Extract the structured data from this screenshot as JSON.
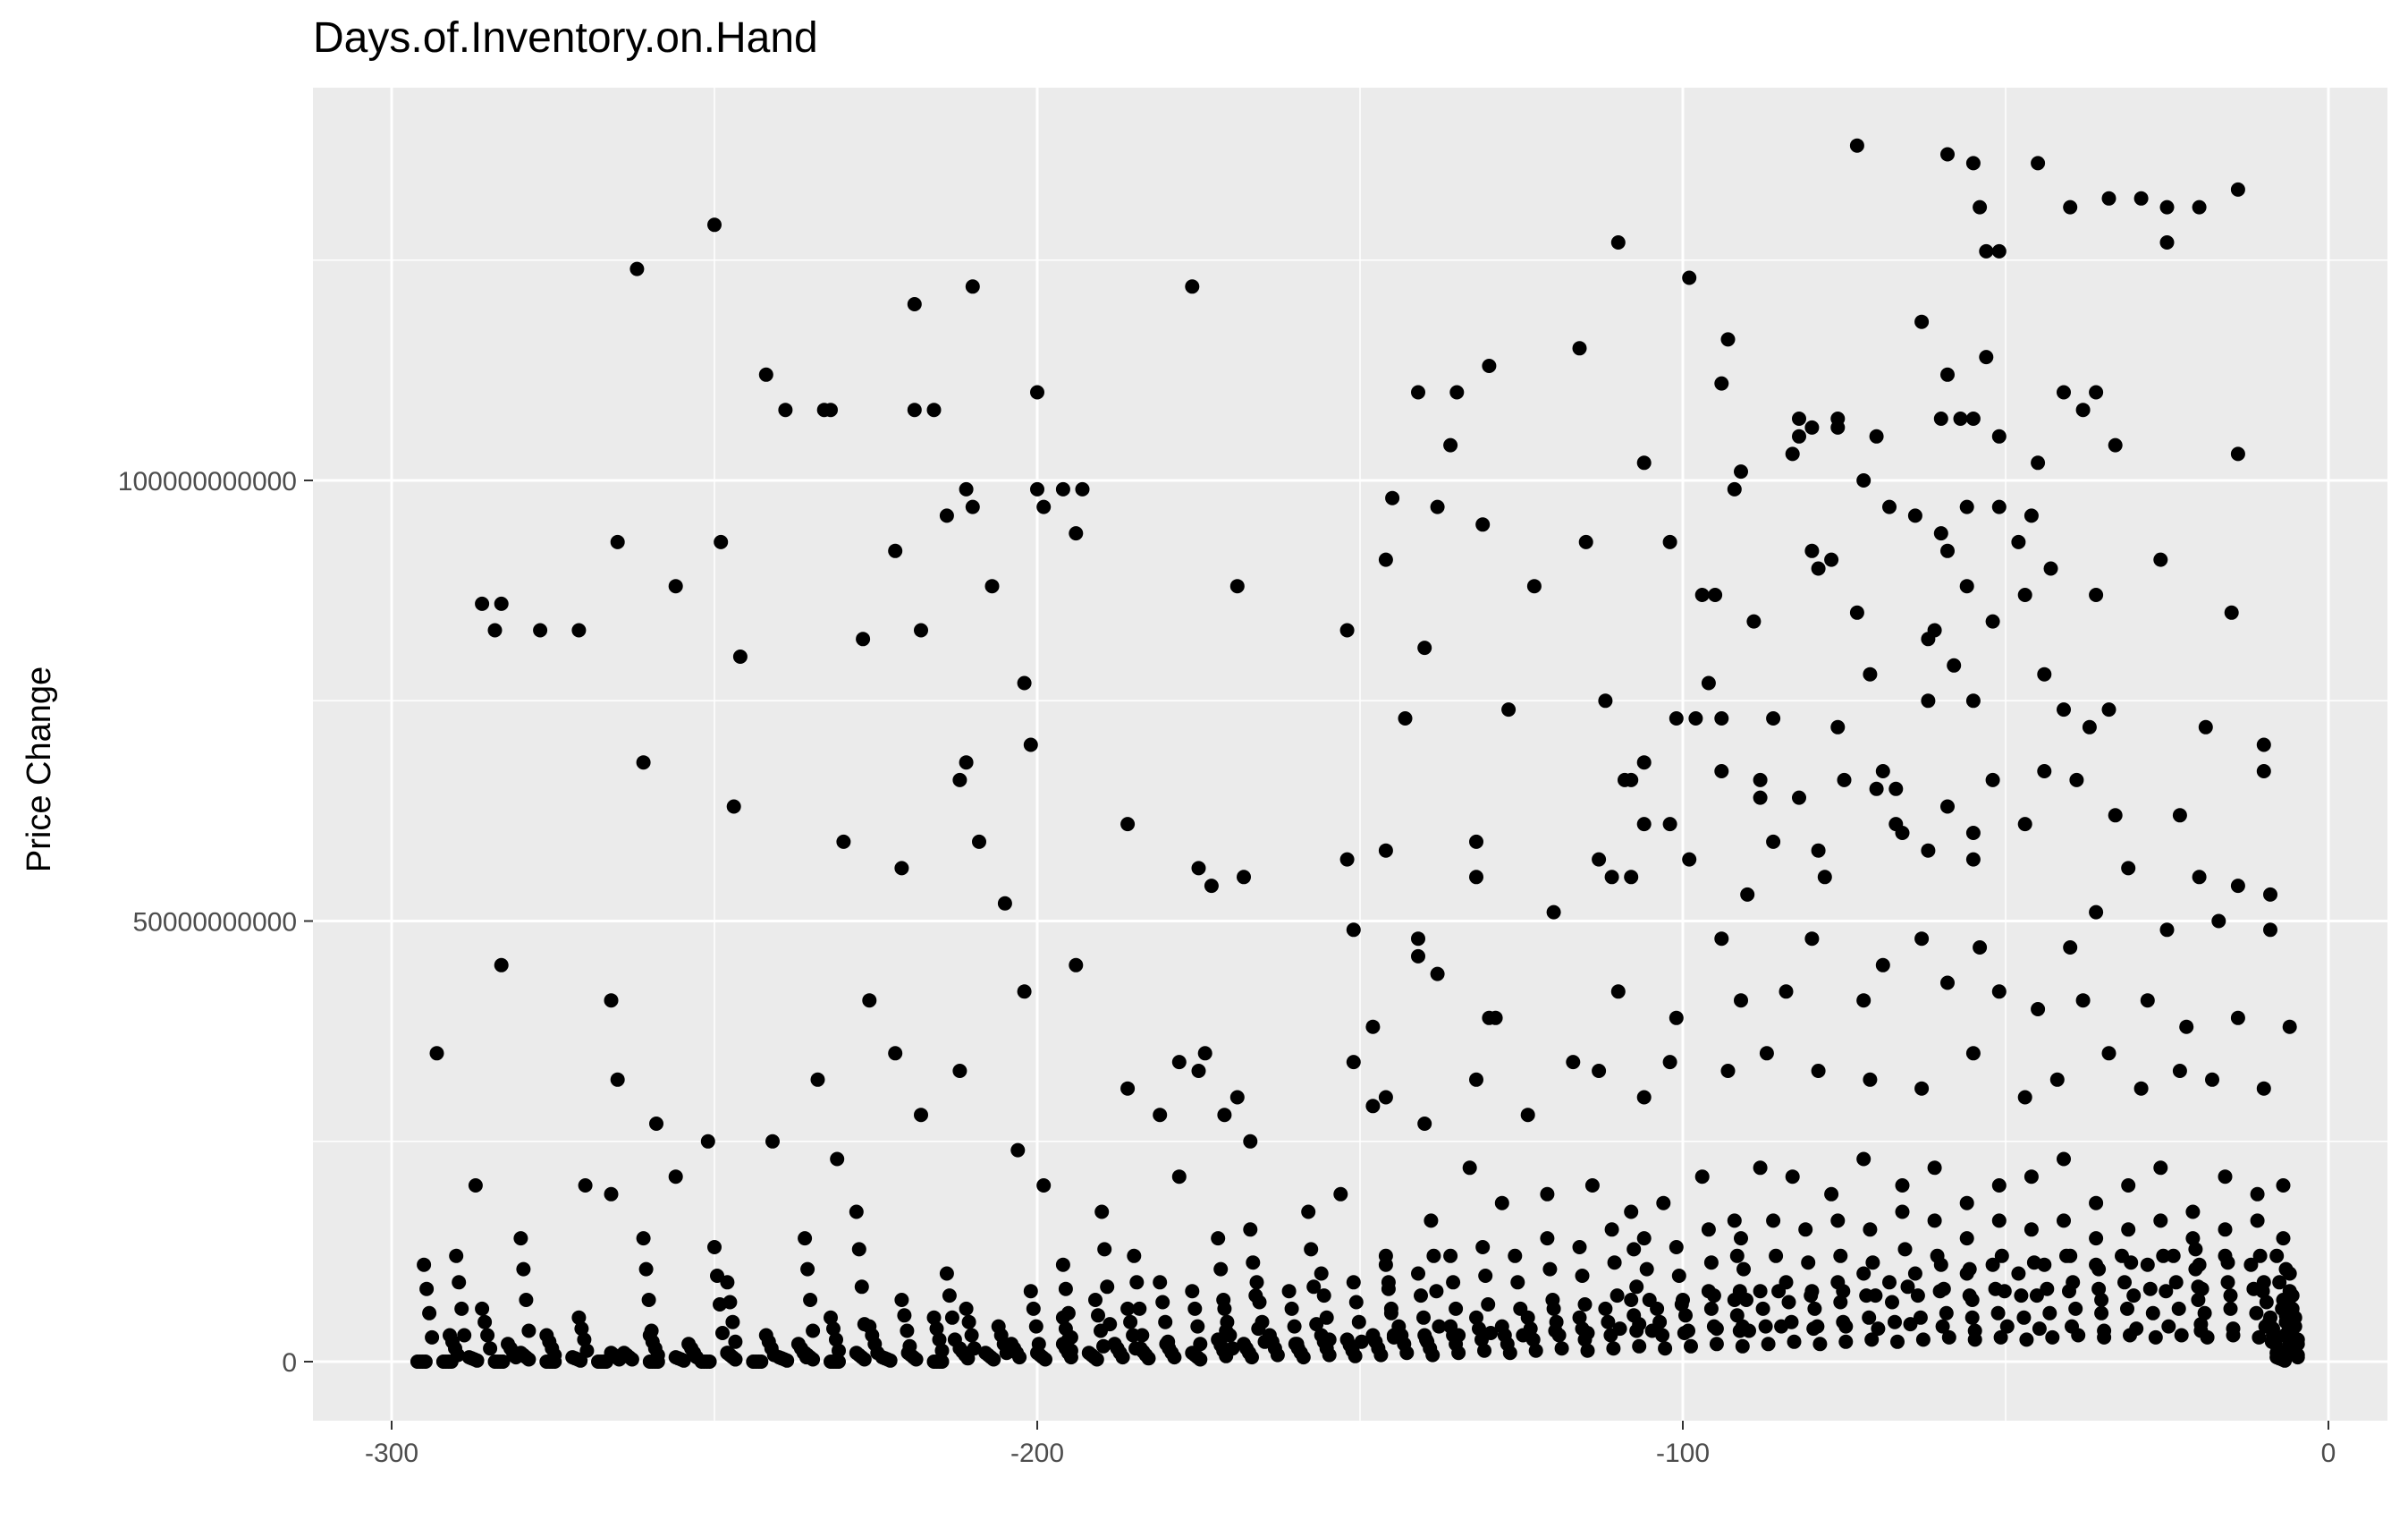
{
  "chart_data": {
    "type": "scatter",
    "title": "Days.of.Inventory.on.Hand",
    "xlabel": "",
    "ylabel": "Price Change",
    "xlim": [
      -300,
      0
    ],
    "ylim": [
      -7000000000,
      145000000000
    ],
    "xticks": [
      -300,
      -200,
      -100,
      0
    ],
    "xtick_labels": [
      "-300",
      "-200",
      "-100",
      "0"
    ],
    "yticks": [
      0,
      50000000000,
      100000000000
    ],
    "ytick_labels": [
      "0",
      "50000000000",
      "100000000000"
    ],
    "grid": true,
    "legend": "none",
    "point_color": "#000000",
    "panel_color": "#ebebeb",
    "grid_color": "#ffffff",
    "points": [
      [
        -73,
        138
      ],
      [
        -59,
        137
      ],
      [
        -55,
        136
      ],
      [
        -45,
        136
      ],
      [
        -14,
        133
      ],
      [
        -34,
        132
      ],
      [
        -29,
        132
      ],
      [
        -25,
        131
      ],
      [
        -20,
        131
      ],
      [
        -40,
        131
      ],
      [
        -54,
        131
      ],
      [
        -25,
        127
      ],
      [
        -51,
        126
      ],
      [
        -53,
        126
      ],
      [
        -250,
        129
      ],
      [
        -262,
        124
      ],
      [
        -110,
        127
      ],
      [
        -99,
        123
      ],
      [
        -176,
        122
      ],
      [
        -210,
        122
      ],
      [
        -219,
        120
      ],
      [
        -63,
        118
      ],
      [
        -93,
        116
      ],
      [
        -116,
        115
      ],
      [
        -53,
        114
      ],
      [
        -130,
        113
      ],
      [
        -242,
        112
      ],
      [
        -239,
        108
      ],
      [
        -233,
        108
      ],
      [
        -232,
        108
      ],
      [
        -216,
        108
      ],
      [
        -219,
        108
      ],
      [
        -200,
        110
      ],
      [
        -141,
        110
      ],
      [
        -135,
        110
      ],
      [
        -94,
        111
      ],
      [
        -59,
        112
      ],
      [
        -36,
        110
      ],
      [
        -41,
        110
      ],
      [
        -38,
        108
      ],
      [
        -57,
        107
      ],
      [
        -60,
        107
      ],
      [
        -55,
        107
      ],
      [
        -70,
        105
      ],
      [
        -80,
        106
      ],
      [
        -76,
        106
      ],
      [
        -82,
        107
      ],
      [
        -76,
        107
      ],
      [
        -82,
        105
      ],
      [
        -51,
        105
      ],
      [
        -33,
        104
      ],
      [
        -14,
        103
      ],
      [
        -83,
        103
      ],
      [
        -91,
        101
      ],
      [
        -106,
        102
      ],
      [
        -45,
        102
      ],
      [
        -92,
        99
      ],
      [
        -200,
        99
      ],
      [
        -196,
        99
      ],
      [
        -193,
        99
      ],
      [
        -211,
        99
      ],
      [
        -72,
        100
      ],
      [
        -136,
        104
      ],
      [
        -210,
        97
      ],
      [
        -214,
        96
      ],
      [
        -199,
        97
      ],
      [
        -138,
        97
      ],
      [
        -145,
        98
      ],
      [
        -68,
        97
      ],
      [
        -51,
        97
      ],
      [
        -56,
        97
      ],
      [
        -46,
        96
      ],
      [
        -64,
        96
      ],
      [
        -131,
        95
      ],
      [
        -60,
        94
      ],
      [
        -48,
        93
      ],
      [
        -80,
        92
      ],
      [
        -102,
        93
      ],
      [
        -115,
        93
      ],
      [
        -194,
        94
      ],
      [
        -222,
        92
      ],
      [
        -265,
        93
      ],
      [
        -249,
        93
      ],
      [
        -77,
        91
      ],
      [
        -59,
        92
      ],
      [
        -79,
        90
      ],
      [
        -26,
        91
      ],
      [
        -146,
        91
      ],
      [
        -43,
        90
      ],
      [
        -47,
        87
      ],
      [
        -56,
        88
      ],
      [
        -95,
        87
      ],
      [
        -97,
        87
      ],
      [
        -207,
        88
      ],
      [
        -169,
        88
      ],
      [
        -123,
        88
      ],
      [
        -256,
        88
      ],
      [
        -246,
        80
      ],
      [
        -286,
        86
      ],
      [
        -283,
        86
      ],
      [
        -284,
        83
      ],
      [
        -277,
        83
      ],
      [
        -271,
        83
      ],
      [
        -218,
        83
      ],
      [
        -227,
        82
      ],
      [
        -152,
        83
      ],
      [
        -140,
        81
      ],
      [
        -89,
        84
      ],
      [
        -15,
        85
      ],
      [
        -61,
        83
      ],
      [
        -73,
        85
      ],
      [
        -58,
        79
      ],
      [
        -52,
        84
      ],
      [
        -36,
        87
      ],
      [
        -62,
        82
      ],
      [
        -202,
        77
      ],
      [
        -96,
        77
      ],
      [
        -71,
        78
      ],
      [
        -44,
        78
      ],
      [
        -143,
        73
      ],
      [
        -127,
        74
      ],
      [
        -112,
        75
      ],
      [
        -98,
        73
      ],
      [
        -94,
        73
      ],
      [
        -101,
        73
      ],
      [
        -86,
        73
      ],
      [
        -76,
        72
      ],
      [
        -62,
        75
      ],
      [
        -55,
        75
      ],
      [
        -37,
        72
      ],
      [
        -34,
        74
      ],
      [
        -41,
        74
      ],
      [
        -19,
        72
      ],
      [
        -10,
        70
      ],
      [
        -201,
        70
      ],
      [
        -211,
        68
      ],
      [
        -261,
        68
      ],
      [
        -94,
        67
      ],
      [
        -108,
        66
      ],
      [
        -109,
        66
      ],
      [
        -106,
        68
      ],
      [
        -88,
        66
      ],
      [
        -75,
        66
      ],
      [
        -70,
        65
      ],
      [
        -67,
        65
      ],
      [
        -69,
        67
      ],
      [
        -52,
        66
      ],
      [
        -44,
        67
      ],
      [
        -39,
        66
      ],
      [
        -33,
        62
      ],
      [
        -23,
        62
      ],
      [
        -10,
        67
      ],
      [
        -59,
        63
      ],
      [
        -55,
        60
      ],
      [
        -67,
        61
      ],
      [
        -106,
        61
      ],
      [
        -102,
        61
      ],
      [
        -82,
        64
      ],
      [
        -88,
        64
      ],
      [
        -212,
        66
      ],
      [
        -247,
        63
      ],
      [
        -205,
        52
      ],
      [
        -209,
        59
      ],
      [
        -230,
        59
      ],
      [
        -221,
        56
      ],
      [
        -186,
        61
      ],
      [
        -146,
        58
      ],
      [
        -132,
        59
      ],
      [
        -132,
        55
      ],
      [
        -168,
        55
      ],
      [
        -175,
        56
      ],
      [
        -173,
        54
      ],
      [
        -152,
        57
      ],
      [
        -113,
        57
      ],
      [
        -108,
        55
      ],
      [
        -111,
        55
      ],
      [
        -99,
        57
      ],
      [
        -86,
        59
      ],
      [
        -79,
        58
      ],
      [
        -78,
        55
      ],
      [
        -66,
        60
      ],
      [
        -55,
        57
      ],
      [
        -47,
        61
      ],
      [
        -31,
        56
      ],
      [
        -14,
        54
      ],
      [
        -20,
        55
      ],
      [
        -9,
        53
      ],
      [
        -36,
        51
      ],
      [
        -62,
        58
      ],
      [
        -90,
        53
      ],
      [
        -151,
        49
      ],
      [
        -94,
        48
      ],
      [
        -141,
        46
      ],
      [
        -138,
        44
      ],
      [
        -141,
        48
      ],
      [
        -120,
        51
      ],
      [
        -80,
        48
      ],
      [
        -69,
        45
      ],
      [
        -63,
        48
      ],
      [
        -54,
        47
      ],
      [
        -40,
        47
      ],
      [
        -25,
        49
      ],
      [
        -17,
        50
      ],
      [
        -9,
        49
      ],
      [
        -283,
        45
      ],
      [
        -194,
        45
      ],
      [
        -202,
        42
      ],
      [
        -226,
        41
      ],
      [
        -266,
        41
      ],
      [
        -110,
        42
      ],
      [
        -130,
        39
      ],
      [
        -129,
        39
      ],
      [
        -148,
        38
      ],
      [
        -101,
        39
      ],
      [
        -91,
        41
      ],
      [
        -84,
        42
      ],
      [
        -72,
        41
      ],
      [
        -59,
        43
      ],
      [
        -51,
        42
      ],
      [
        -45,
        40
      ],
      [
        -38,
        41
      ],
      [
        -28,
        41
      ],
      [
        -22,
        38
      ],
      [
        -14,
        39
      ],
      [
        -6,
        38
      ],
      [
        -293,
        35
      ],
      [
        -265,
        32
      ],
      [
        -222,
        35
      ],
      [
        -212,
        33
      ],
      [
        -234,
        32
      ],
      [
        -241,
        25
      ],
      [
        -251,
        25
      ],
      [
        -259,
        27
      ],
      [
        -175,
        33
      ],
      [
        -178,
        34
      ],
      [
        -174,
        35
      ],
      [
        -169,
        30
      ],
      [
        -186,
        31
      ],
      [
        -181,
        28
      ],
      [
        -171,
        28
      ],
      [
        -167,
        25
      ],
      [
        -148,
        29
      ],
      [
        -151,
        34
      ],
      [
        -146,
        30
      ],
      [
        -140,
        27
      ],
      [
        -132,
        32
      ],
      [
        -124,
        28
      ],
      [
        -117,
        34
      ],
      [
        -106,
        30
      ],
      [
        -113,
        33
      ],
      [
        -102,
        34
      ],
      [
        -93,
        33
      ],
      [
        -87,
        35
      ],
      [
        -79,
        33
      ],
      [
        -71,
        32
      ],
      [
        -63,
        31
      ],
      [
        -55,
        35
      ],
      [
        -47,
        30
      ],
      [
        -42,
        32
      ],
      [
        -34,
        35
      ],
      [
        -29,
        31
      ],
      [
        -23,
        33
      ],
      [
        -18,
        32
      ],
      [
        -10,
        31
      ],
      [
        -290,
        12
      ],
      [
        -287,
        20
      ],
      [
        -280,
        14
      ],
      [
        -270,
        20
      ],
      [
        -266,
        19
      ],
      [
        -261,
        14
      ],
      [
        -256,
        21
      ],
      [
        -250,
        13
      ],
      [
        -248,
        9
      ],
      [
        -236,
        14
      ],
      [
        -231,
        23
      ],
      [
        -228,
        17
      ],
      [
        -218,
        28
      ],
      [
        -214,
        10
      ],
      [
        -203,
        24
      ],
      [
        -199,
        20
      ],
      [
        -196,
        11
      ],
      [
        -190,
        17
      ],
      [
        -185,
        12
      ],
      [
        -178,
        21
      ],
      [
        -172,
        14
      ],
      [
        -167,
        15
      ],
      [
        -158,
        17
      ],
      [
        -153,
        19
      ],
      [
        -146,
        12
      ],
      [
        -139,
        16
      ],
      [
        -133,
        22
      ],
      [
        -128,
        18
      ],
      [
        -121,
        19
      ],
      [
        -114,
        20
      ],
      [
        -108,
        17
      ],
      [
        -103,
        18
      ],
      [
        -97,
        21
      ],
      [
        -92,
        16
      ],
      [
        -88,
        22
      ],
      [
        -83,
        21
      ],
      [
        -77,
        19
      ],
      [
        -72,
        23
      ],
      [
        -66,
        20
      ],
      [
        -61,
        22
      ],
      [
        -56,
        18
      ],
      [
        -51,
        20
      ],
      [
        -46,
        21
      ],
      [
        -41,
        23
      ],
      [
        -36,
        18
      ],
      [
        -31,
        20
      ],
      [
        -26,
        22
      ],
      [
        -21,
        17
      ],
      [
        -16,
        21
      ],
      [
        -11,
        19
      ],
      [
        -7,
        20
      ],
      [
        -295,
        11
      ],
      [
        -291,
        3
      ],
      [
        -286,
        6
      ],
      [
        -282,
        2
      ],
      [
        -276,
        3
      ],
      [
        -271,
        5
      ],
      [
        -266,
        1
      ],
      [
        -260,
        3
      ],
      [
        -254,
        2
      ],
      [
        -248,
        1
      ],
      [
        -242,
        3
      ],
      [
        -237,
        2
      ],
      [
        -232,
        5
      ],
      [
        -226,
        4
      ],
      [
        -221,
        7
      ],
      [
        -216,
        5
      ],
      [
        -211,
        6
      ],
      [
        -206,
        4
      ],
      [
        -201,
        8
      ],
      [
        -196,
        5
      ],
      [
        -191,
        7
      ],
      [
        -186,
        6
      ],
      [
        -181,
        9
      ],
      [
        -176,
        8
      ],
      [
        -171,
        6
      ],
      [
        -166,
        9
      ],
      [
        -161,
        8
      ],
      [
        -156,
        10
      ],
      [
        -151,
        9
      ],
      [
        -146,
        11
      ],
      [
        -141,
        10
      ],
      [
        -136,
        12
      ],
      [
        -131,
        13
      ],
      [
        -126,
        12
      ],
      [
        -121,
        14
      ],
      [
        -116,
        13
      ],
      [
        -111,
        15
      ],
      [
        -106,
        14
      ],
      [
        -101,
        13
      ],
      [
        -96,
        15
      ],
      [
        -91,
        14
      ],
      [
        -86,
        16
      ],
      [
        -81,
        15
      ],
      [
        -76,
        16
      ],
      [
        -71,
        15
      ],
      [
        -66,
        17
      ],
      [
        -61,
        16
      ],
      [
        -56,
        14
      ],
      [
        -51,
        16
      ],
      [
        -46,
        15
      ],
      [
        -41,
        16
      ],
      [
        -36,
        14
      ],
      [
        -31,
        15
      ],
      [
        -26,
        16
      ],
      [
        -21,
        14
      ],
      [
        -16,
        15
      ],
      [
        -11,
        16
      ],
      [
        -7,
        14
      ],
      [
        -296,
        0
      ],
      [
        -292,
        0
      ],
      [
        -288,
        0.5
      ],
      [
        -284,
        0
      ],
      [
        -280,
        1
      ],
      [
        -276,
        0
      ],
      [
        -272,
        0.5
      ],
      [
        -268,
        0
      ],
      [
        -264,
        1
      ],
      [
        -260,
        0
      ],
      [
        -256,
        0.5
      ],
      [
        -252,
        0
      ],
      [
        -248,
        1
      ],
      [
        -244,
        0
      ],
      [
        -240,
        0.5
      ],
      [
        -236,
        1
      ],
      [
        -232,
        0
      ],
      [
        -228,
        1
      ],
      [
        -224,
        0.5
      ],
      [
        -220,
        1
      ],
      [
        -216,
        0
      ],
      [
        -212,
        1.5
      ],
      [
        -208,
        1
      ],
      [
        -204,
        2
      ],
      [
        -200,
        1
      ],
      [
        -196,
        2
      ],
      [
        -192,
        1
      ],
      [
        -188,
        2
      ],
      [
        -184,
        1.5
      ],
      [
        -180,
        2
      ],
      [
        -176,
        1
      ],
      [
        -172,
        2.5
      ],
      [
        -168,
        2
      ],
      [
        -164,
        3
      ],
      [
        -160,
        2
      ],
      [
        -156,
        3
      ],
      [
        -152,
        2.5
      ],
      [
        -148,
        3
      ],
      [
        -144,
        4
      ],
      [
        -140,
        3
      ],
      [
        -136,
        4
      ],
      [
        -132,
        5
      ],
      [
        -128,
        4
      ],
      [
        -124,
        5
      ],
      [
        -120,
        6
      ],
      [
        -116,
        5
      ],
      [
        -112,
        6
      ],
      [
        -108,
        7
      ],
      [
        -104,
        6
      ],
      [
        -100,
        7
      ],
      [
        -96,
        8
      ],
      [
        -92,
        7
      ],
      [
        -88,
        8
      ],
      [
        -84,
        9
      ],
      [
        -80,
        8
      ],
      [
        -76,
        9
      ],
      [
        -72,
        10
      ],
      [
        -68,
        9
      ],
      [
        -64,
        10
      ],
      [
        -60,
        11
      ],
      [
        -56,
        10
      ],
      [
        -52,
        11
      ],
      [
        -48,
        10
      ],
      [
        -44,
        11
      ],
      [
        -40,
        12
      ],
      [
        -36,
        11
      ],
      [
        -32,
        12
      ],
      [
        -28,
        11
      ],
      [
        -24,
        12
      ],
      [
        -20,
        11
      ],
      [
        -16,
        12
      ],
      [
        -12,
        11
      ],
      [
        -8,
        12
      ],
      [
        -6,
        10
      ],
      [
        -7,
        7
      ],
      [
        -9,
        5
      ],
      [
        -6,
        3
      ],
      [
        -8,
        1
      ],
      [
        -10,
        9
      ],
      [
        -6,
        8
      ],
      [
        -7,
        6
      ],
      [
        -9,
        4
      ],
      [
        -6,
        2
      ],
      [
        -8,
        0.5
      ]
    ]
  }
}
